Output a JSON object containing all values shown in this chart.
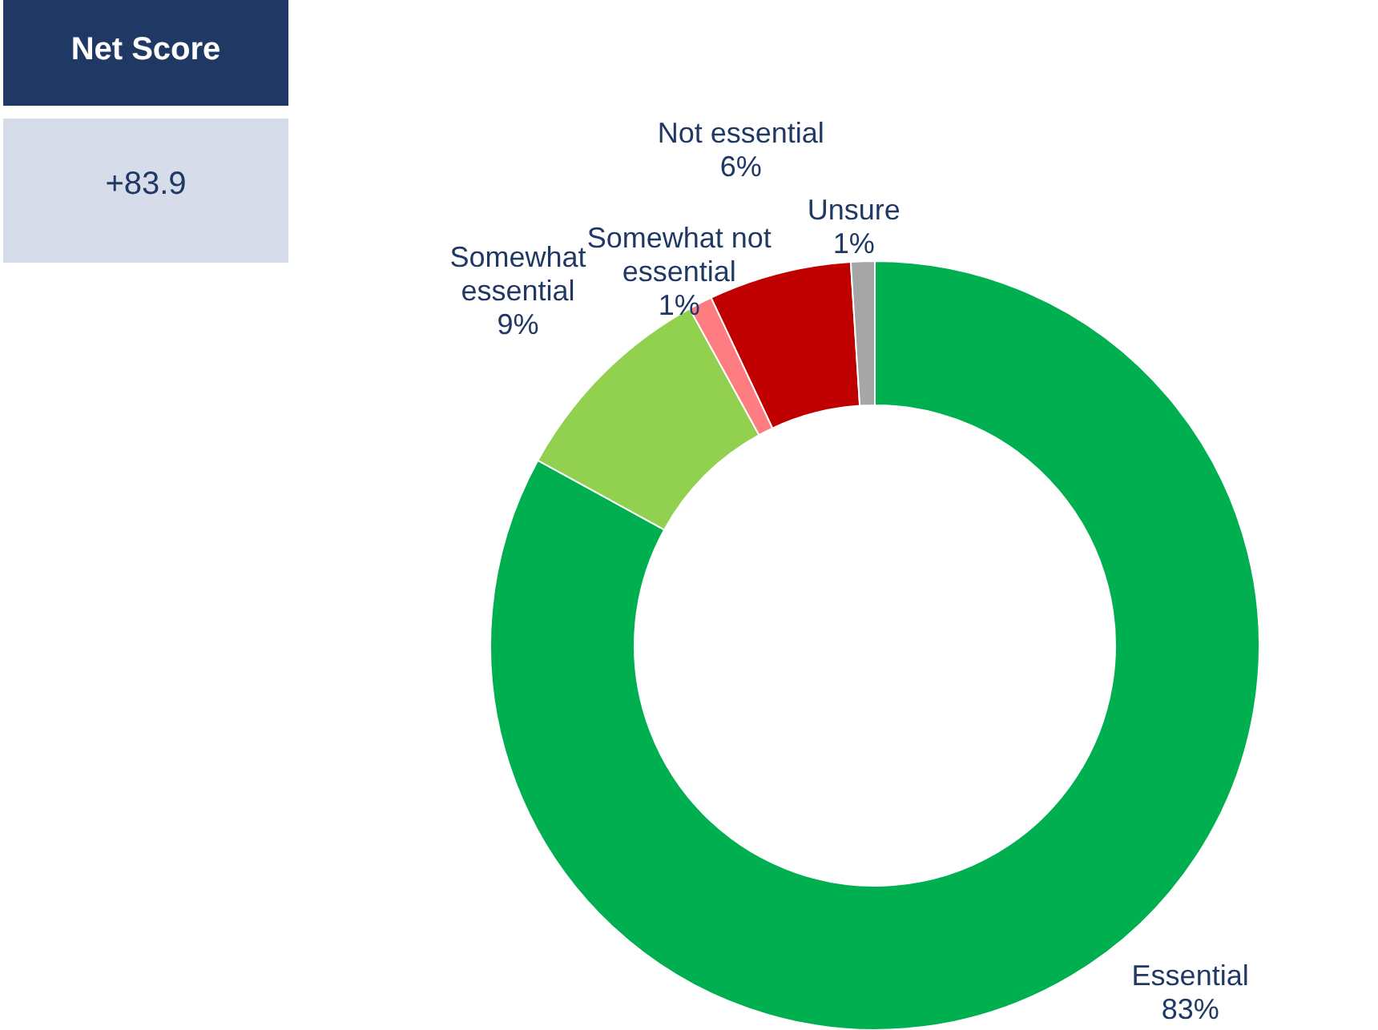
{
  "chart_data": [
    {
      "type": "other",
      "title": "Net Score",
      "annotations": [
        "+83.9"
      ]
    },
    {
      "type": "donut",
      "categories": [
        "Essential",
        "Somewhat essential",
        "Somewhat not essential",
        "Not essential",
        "Unsure"
      ],
      "values": [
        83,
        9,
        1,
        6,
        1
      ],
      "colors": [
        "#00b050",
        "#92d050",
        "#ff7c80",
        "#c00000",
        "#a6a6a6"
      ],
      "value_labels": [
        "83%",
        "9%",
        "1%",
        "6%",
        "1%"
      ]
    }
  ]
}
